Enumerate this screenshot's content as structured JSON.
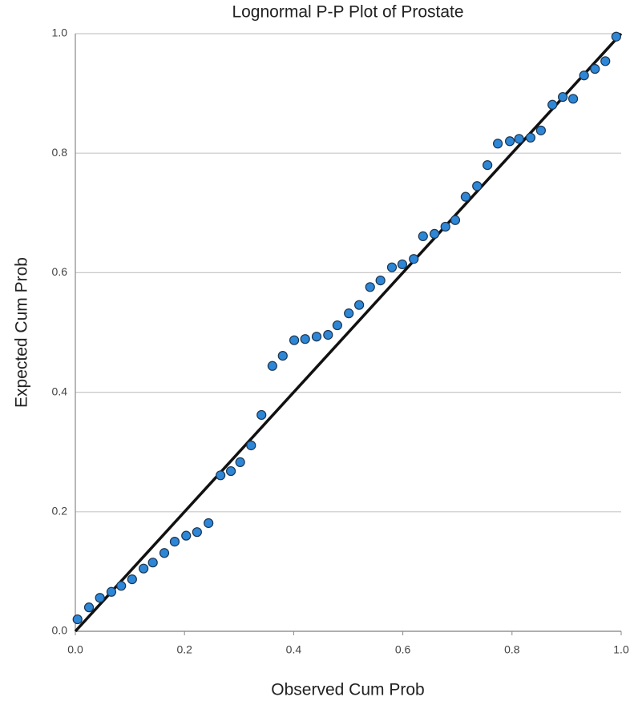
{
  "chart_data": {
    "type": "scatter",
    "title": "Lognormal P-P Plot of Prostate",
    "x_label": "Observed Cum Prob",
    "y_label": "Expected Cum Prob",
    "xlim": [
      0,
      1
    ],
    "ylim": [
      0,
      1
    ],
    "xticks": [
      {
        "value": 0,
        "label": "0.0"
      },
      0.2,
      0.4,
      0.6,
      0.8,
      {
        "value": 1,
        "label": "1.0"
      }
    ],
    "yticks": [
      {
        "value": 0,
        "label": "0.0"
      },
      0.2,
      0.4,
      0.6,
      0.8,
      {
        "value": 1,
        "label": "1.0"
      }
    ],
    "grid": true,
    "reference_line": true,
    "series": [
      {
        "color": "#2e86d6",
        "x": [
          0.004,
          0.025,
          0.045,
          0.066,
          0.084,
          0.104,
          0.125,
          0.142,
          0.163,
          0.182,
          0.203,
          0.223,
          0.244,
          0.266,
          0.285,
          0.302,
          0.322,
          0.341,
          0.361,
          0.38,
          0.401,
          0.421,
          0.442,
          0.463,
          0.48,
          0.501,
          0.52,
          0.54,
          0.559,
          0.58,
          0.599,
          0.62,
          0.637,
          0.658,
          0.678,
          0.696,
          0.715,
          0.736,
          0.755,
          0.774,
          0.796,
          0.813,
          0.834,
          0.853,
          0.874,
          0.893,
          0.912,
          0.932,
          0.952,
          0.971,
          0.991
        ],
        "values": [
          0.02,
          0.04,
          0.056,
          0.066,
          0.076,
          0.087,
          0.105,
          0.115,
          0.131,
          0.15,
          0.16,
          0.166,
          0.181,
          0.261,
          0.268,
          0.283,
          0.311,
          0.362,
          0.444,
          0.461,
          0.487,
          0.489,
          0.493,
          0.496,
          0.512,
          0.532,
          0.546,
          0.576,
          0.587,
          0.609,
          0.614,
          0.623,
          0.661,
          0.665,
          0.677,
          0.688,
          0.727,
          0.745,
          0.78,
          0.816,
          0.82,
          0.824,
          0.826,
          0.838,
          0.881,
          0.894,
          0.891,
          0.93,
          0.941,
          0.954,
          0.995
        ]
      }
    ]
  }
}
